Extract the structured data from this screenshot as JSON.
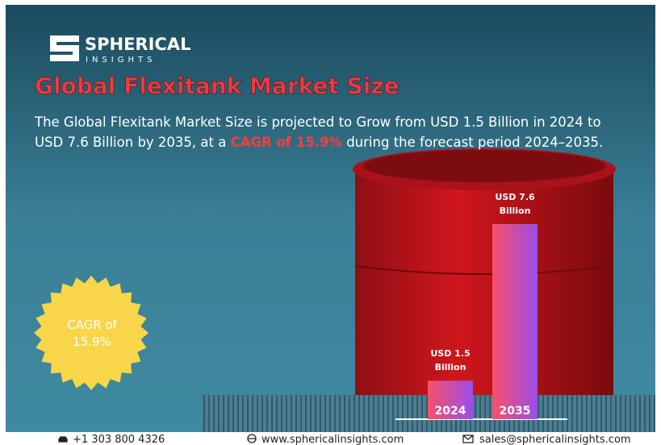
{
  "logo": {
    "name": "SPHERICAL",
    "tagline": "INSIGHTS"
  },
  "title": "Global Flexitank Market Size",
  "description": {
    "line1": "The Global Flexitank Market Size is projected to Grow from USD 1.5 Billion in 2024 to",
    "line2": [
      "USD 7.6 Billion by 2035, at a ",
      "CAGR of 15.9%",
      " during the forecast period 2024–2035."
    ]
  },
  "badge": "CAGR of 15.9%",
  "chart_data": {
    "type": "bar",
    "categories": [
      "2024",
      "2035"
    ],
    "values": [
      1.5,
      7.6
    ],
    "value_labels": [
      "USD 1.5 Billion",
      "USD 7.6 Billion"
    ],
    "color": [
      "#f7506a",
      "#9b4dea"
    ]
  },
  "footer": {
    "phone": "+1 303 800 4326",
    "website": "www.sphericalinsights.com",
    "email": "sales@sphericalinsights.com"
  }
}
